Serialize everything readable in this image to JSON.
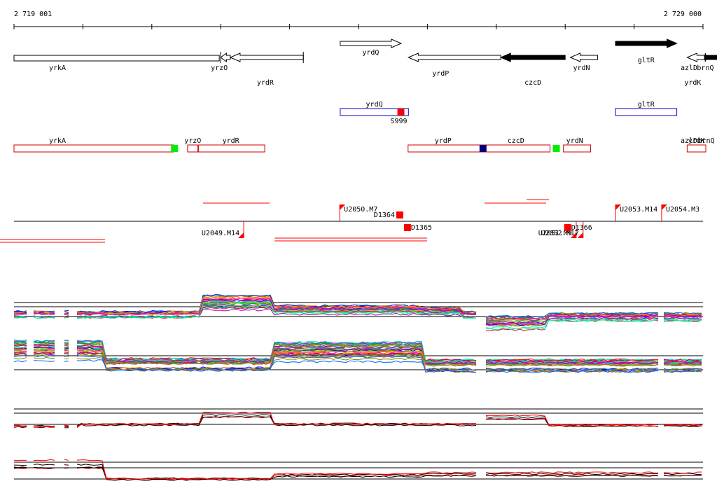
{
  "axis": {
    "start_label": "2 719 001",
    "end_label": "2 729 000",
    "start": 2719001,
    "end": 2729000
  },
  "genes": [
    {
      "name": "yrkA",
      "start": 2719001,
      "end": 2722000,
      "strand": "-",
      "filled": false
    },
    {
      "name": "yrzO",
      "start": 2722000,
      "end": 2722140,
      "strand": "-",
      "filled": false
    },
    {
      "name": "yrdR",
      "start": 2722140,
      "end": 2723200,
      "strand": "-",
      "filled": false
    },
    {
      "name": "yrdQ",
      "start": 2723735,
      "end": 2724620,
      "strand": "+",
      "filled": false
    },
    {
      "name": "yrdP",
      "start": 2724725,
      "end": 2726065,
      "strand": "-",
      "filled": false
    },
    {
      "name": "czcD",
      "start": 2726065,
      "end": 2727000,
      "strand": "-",
      "filled": true
    },
    {
      "name": "yrdN",
      "start": 2727075,
      "end": 2727470,
      "strand": "-",
      "filled": false
    },
    {
      "name": "gltR",
      "start": 2727730,
      "end": 2728620,
      "strand": "+",
      "filled": true
    },
    {
      "name": "yrdK",
      "start": 2728770,
      "end": 2729050,
      "strand": "-",
      "filled": false
    },
    {
      "name": "brnQ",
      "start": 2729050,
      "end": 2730365,
      "strand": "-",
      "filled": true
    },
    {
      "name": "azlD",
      "start": 2730540,
      "end": 2730900,
      "strand": "-",
      "filled": true
    }
  ],
  "plus_operons": [
    {
      "label": "yrdQ",
      "start": 2723735,
      "end": 2724725
    }
  ],
  "plus_tiny": [
    {
      "label": "gltR",
      "start": 2727730,
      "end": 2728620
    }
  ],
  "minus_operons": [
    {
      "label": "yrkA",
      "start": 2719001,
      "end": 2721320,
      "end_box": "#00ee00"
    },
    {
      "label": "yrzO",
      "start": 2721520,
      "end": 2721670
    },
    {
      "label": "yrdR",
      "start": 2721680,
      "end": 2722640
    },
    {
      "label": "yrdP czcD",
      "start": 2724720,
      "end": 2726780,
      "mid_box": "#000080",
      "end_box": "#00ee00"
    },
    {
      "label": "yrdN",
      "start": 2726975,
      "end": 2727370
    },
    {
      "label": "yrdK",
      "start": 2728770,
      "end": 2729050
    },
    {
      "label": "brnQ",
      "start": 2729050,
      "end": 2730340
    },
    {
      "label": "azlD",
      "start": 2730470,
      "end": 2730800
    }
  ],
  "signals": [
    {
      "label": "S999",
      "position": 2724565,
      "strand": "+"
    }
  ],
  "upshifts": [
    {
      "label": "U2050.M7",
      "position": 2723728,
      "strand": "+"
    },
    {
      "label": "U2053.M14",
      "position": 2727730,
      "strand": "+"
    },
    {
      "label": "U2054.M3",
      "position": 2728400,
      "strand": "+"
    },
    {
      "label": "U2049.M14",
      "position": 2722335,
      "strand": "-"
    },
    {
      "label": "U2051.M9",
      "position": 2727160,
      "strand": "-"
    },
    {
      "label": "U2052.M17",
      "position": 2727260,
      "strand": "-"
    }
  ],
  "downshifts": [
    {
      "label": "D1364",
      "position": 2724650,
      "strand": "+"
    },
    {
      "label": "D1365",
      "position": 2724660,
      "strand": "-"
    },
    {
      "label": "D1366",
      "position": 2726985,
      "strand": "-"
    }
  ]
}
